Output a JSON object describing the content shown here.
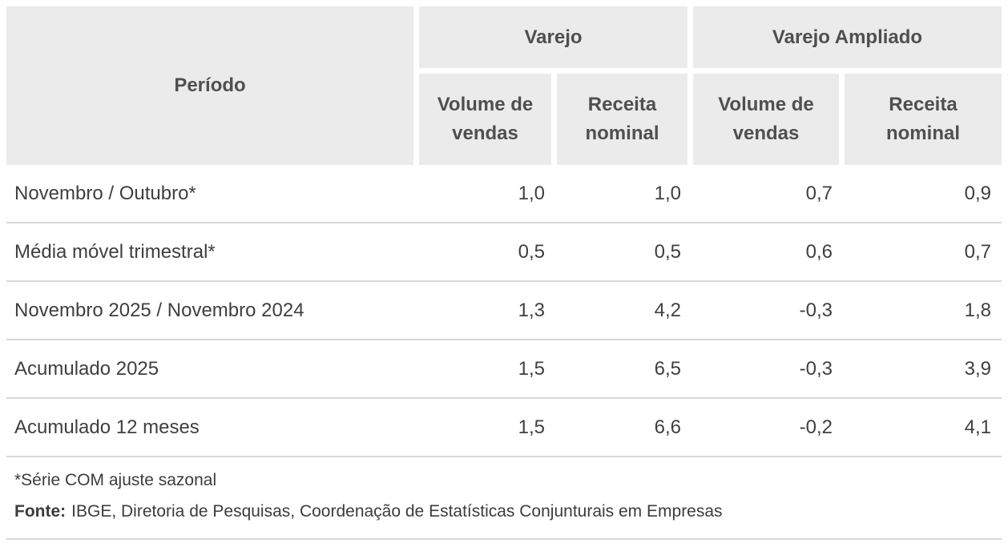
{
  "table": {
    "header": {
      "period_label": "Período",
      "groups": [
        {
          "label": "Varejo"
        },
        {
          "label": "Varejo Ampliado"
        }
      ],
      "subheaders": [
        "Volume de vendas",
        "Receita nominal",
        "Volume de vendas",
        "Receita nominal"
      ]
    },
    "rows": [
      {
        "label": "Novembro / Outubro*",
        "values": [
          "1,0",
          "1,0",
          "0,7",
          "0,9"
        ]
      },
      {
        "label": "Média móvel trimestral*",
        "values": [
          "0,5",
          "0,5",
          "0,6",
          "0,7"
        ]
      },
      {
        "label": "Novembro 2025 / Novembro 2024",
        "values": [
          "1,3",
          "4,2",
          "-0,3",
          "1,8"
        ]
      },
      {
        "label": "Acumulado 2025",
        "values": [
          "1,5",
          "6,5",
          "-0,3",
          "3,9"
        ]
      },
      {
        "label": "Acumulado 12 meses",
        "values": [
          "1,5",
          "6,6",
          "-0,2",
          "4,1"
        ]
      }
    ],
    "footnote": "*Série COM ajuste sazonal",
    "source_label": "Fonte:",
    "source_text": "IBGE, Diretoria de Pesquisas, Coordenação de Estatísticas Conjunturais em Empresas"
  },
  "colors": {
    "header_bg": "#ebebeb",
    "header_text": "#4f4f4f",
    "body_text": "#3f3f3f",
    "separator": "#d8d8d8",
    "background": "#ffffff"
  },
  "chart_data": {
    "type": "table",
    "title": "",
    "columns": [
      "Período",
      "Varejo - Volume de vendas",
      "Varejo - Receita nominal",
      "Varejo Ampliado - Volume de vendas",
      "Varejo Ampliado - Receita nominal"
    ],
    "rows": [
      [
        "Novembro / Outubro*",
        1.0,
        1.0,
        0.7,
        0.9
      ],
      [
        "Média móvel trimestral*",
        0.5,
        0.5,
        0.6,
        0.7
      ],
      [
        "Novembro 2025 / Novembro 2024",
        1.3,
        4.2,
        -0.3,
        1.8
      ],
      [
        "Acumulado 2025",
        1.5,
        6.5,
        -0.3,
        3.9
      ],
      [
        "Acumulado 12 meses",
        1.5,
        6.6,
        -0.2,
        4.1
      ]
    ],
    "footnote": "*Série COM ajuste sazonal",
    "source": "Fonte: IBGE, Diretoria de Pesquisas, Coordenação de Estatísticas Conjunturais em Empresas",
    "decimal_separator": ","
  }
}
